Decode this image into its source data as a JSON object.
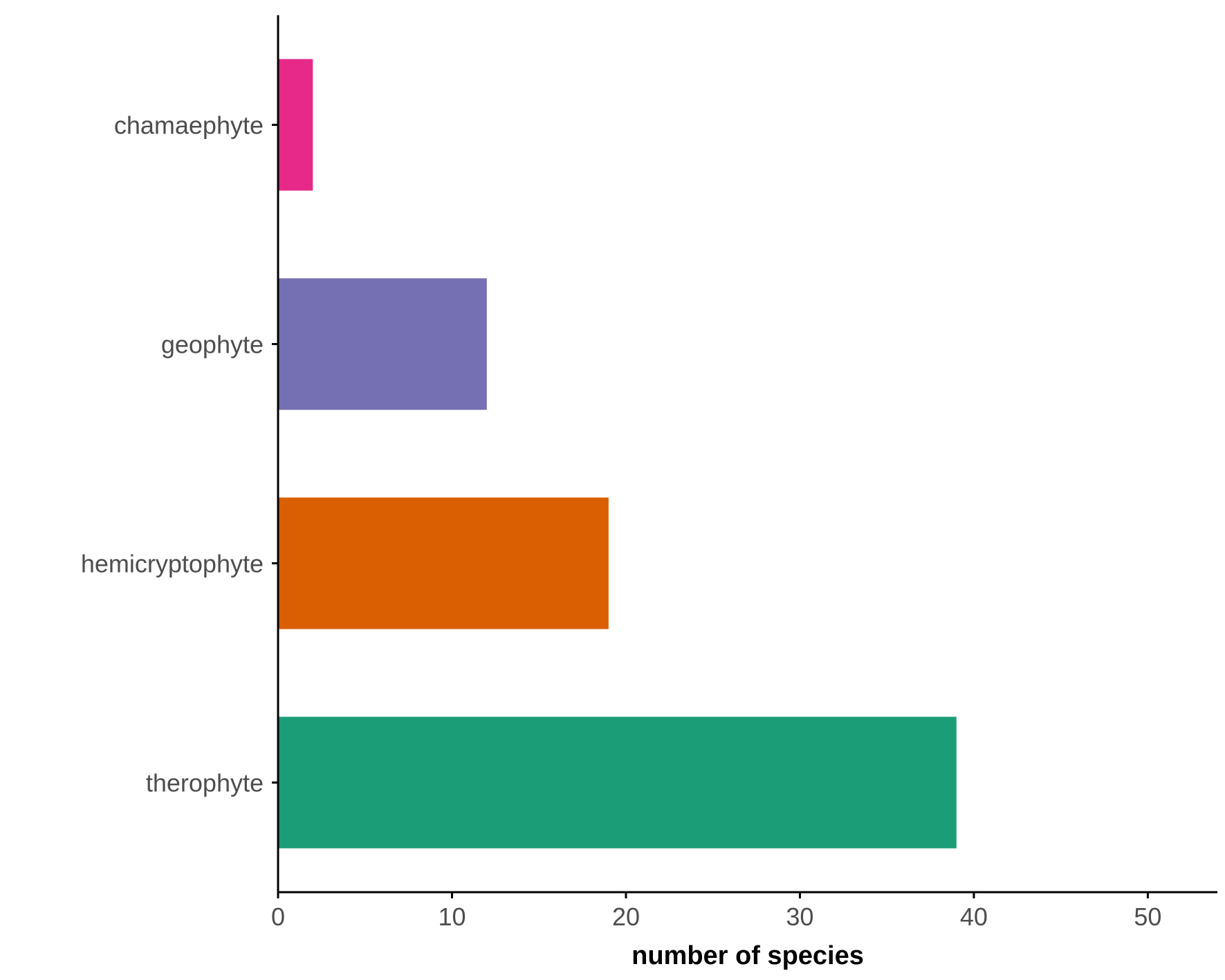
{
  "chart_data": {
    "type": "bar",
    "orientation": "horizontal",
    "categories": [
      "chamaephyte",
      "geophyte",
      "hemicryptophyte",
      "therophyte"
    ],
    "values": [
      2,
      12,
      19,
      39
    ],
    "colors": [
      "#E7298A",
      "#7570B3",
      "#D95F02",
      "#1B9E77"
    ],
    "xlabel": "number of species",
    "ylabel": "",
    "xlim": [
      0,
      54
    ],
    "xticks": [
      0,
      10,
      20,
      30,
      40,
      50
    ],
    "grid": false,
    "legend": "none"
  }
}
